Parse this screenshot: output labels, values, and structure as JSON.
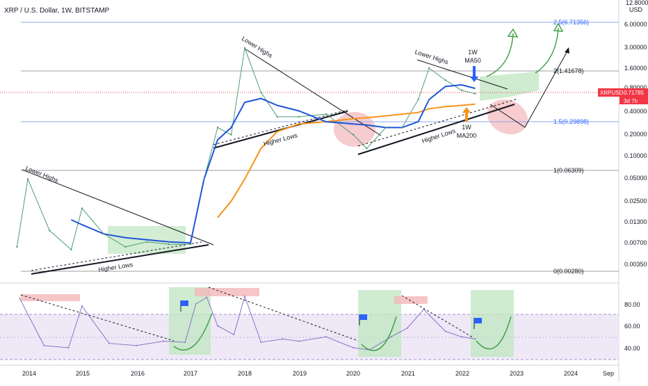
{
  "title": "XRP / U.S. Dollar, 1W, BITSTAMP",
  "currency": "USD",
  "price_axis": {
    "labels": [
      "12.80000",
      "6.00000",
      "3.00000",
      "1.60000",
      "0.80000",
      "0.40000",
      "0.20000",
      "0.10000",
      "0.05000",
      "0.02500",
      "0.01300",
      "0.00700",
      "0.00350"
    ],
    "current_symbol": "XRPUSD",
    "current_price": "0.71785",
    "countdown": "3d 7h"
  },
  "rsi_axis": {
    "labels": [
      "80.00",
      "60.00",
      "40.00"
    ]
  },
  "time_axis": {
    "labels": [
      "2014",
      "2015",
      "2016",
      "2017",
      "2018",
      "2019",
      "2020",
      "2021",
      "2022",
      "2023",
      "2024",
      "Sep"
    ]
  },
  "fib_levels": [
    {
      "label": "2.5(6.71356)",
      "color": "#2962ff"
    },
    {
      "label": "2(1.41678)",
      "color": "#131722"
    },
    {
      "label": "1.5(0.29898)",
      "color": "#2962ff"
    },
    {
      "label": "1(0.06309)",
      "color": "#131722"
    },
    {
      "label": "0(0.00280)",
      "color": "#131722"
    }
  ],
  "annotations": {
    "lower_highs_1": "Lower Highs",
    "higher_lows_1": "Higher Lows",
    "lower_highs_2": "Lower Highs",
    "higher_lows_2": "Higher Lows",
    "lower_highs_3": "Lower Highs",
    "higher_lows_3": "Higher Lows",
    "ma50_line1": "1W",
    "ma50_line2": "MA50",
    "ma200_line1": "1W",
    "ma200_line2": "MA200"
  },
  "colors": {
    "ma50": "#1e55d8",
    "ma200": "#f7931a",
    "rsi": "#8b72c8",
    "green_zone": "#bfe6c0",
    "red_zone": "#f4b6b9",
    "arrow_green": "#43a047",
    "price_tag": "#f23645"
  },
  "chart_data": [
    {
      "type": "line",
      "title": "XRP / U.S. Dollar, 1W, BITSTAMP",
      "scale": "log",
      "ylim": [
        0.0028,
        12.8
      ],
      "x": [
        2013.8,
        2014.0,
        2014.4,
        2014.8,
        2015.0,
        2015.4,
        2015.8,
        2016.2,
        2016.6,
        2017.0,
        2017.25,
        2017.5,
        2017.75,
        2018.0,
        2018.3,
        2018.6,
        2019.0,
        2019.5,
        2020.0,
        2020.25,
        2020.6,
        2020.9,
        2021.2,
        2021.4,
        2021.7,
        2022.0,
        2022.25
      ],
      "series": [
        {
          "values": [
            0.006,
            0.05,
            0.01,
            0.0055,
            0.02,
            0.009,
            0.006,
            0.007,
            0.0065,
            0.0065,
            0.05,
            0.25,
            0.2,
            3.0,
            0.75,
            0.35,
            0.35,
            0.38,
            0.2,
            0.13,
            0.25,
            0.25,
            0.6,
            1.6,
            1.1,
            0.8,
            0.72
          ]
        },
        {
          "name": "1W MA50",
          "values": [
            null,
            null,
            null,
            0.014,
            0.012,
            0.009,
            0.008,
            0.0075,
            0.007,
            0.0068,
            0.05,
            0.17,
            0.25,
            0.55,
            0.62,
            0.5,
            0.42,
            0.3,
            0.28,
            0.27,
            0.25,
            0.25,
            0.3,
            0.6,
            0.9,
            0.95,
            0.85
          ]
        },
        {
          "name": "1W MA200",
          "values": [
            null,
            null,
            null,
            null,
            null,
            null,
            null,
            null,
            null,
            null,
            null,
            0.015,
            0.025,
            0.05,
            0.13,
            0.22,
            0.28,
            0.3,
            0.33,
            0.34,
            0.36,
            0.38,
            0.4,
            0.45,
            0.48,
            0.5,
            0.52
          ]
        }
      ],
      "fib_values": [
        6.71356,
        1.41678,
        0.29898,
        0.06309,
        0.0028
      ]
    },
    {
      "type": "line",
      "name": "RSI",
      "ylim": [
        30,
        90
      ],
      "x": [
        2013.85,
        2014.3,
        2014.75,
        2015.0,
        2015.5,
        2016.0,
        2016.5,
        2016.9,
        2017.1,
        2017.3,
        2017.5,
        2017.8,
        2018.0,
        2018.3,
        2018.7,
        2019.0,
        2019.5,
        2020.0,
        2020.3,
        2020.7,
        2021.0,
        2021.3,
        2021.7,
        2022.0,
        2022.25
      ],
      "series": [
        {
          "values": [
            85,
            42,
            40,
            78,
            44,
            42,
            46,
            45,
            80,
            86,
            60,
            52,
            87,
            45,
            48,
            46,
            50,
            40,
            38,
            50,
            58,
            75,
            55,
            50,
            48
          ]
        }
      ]
    }
  ]
}
